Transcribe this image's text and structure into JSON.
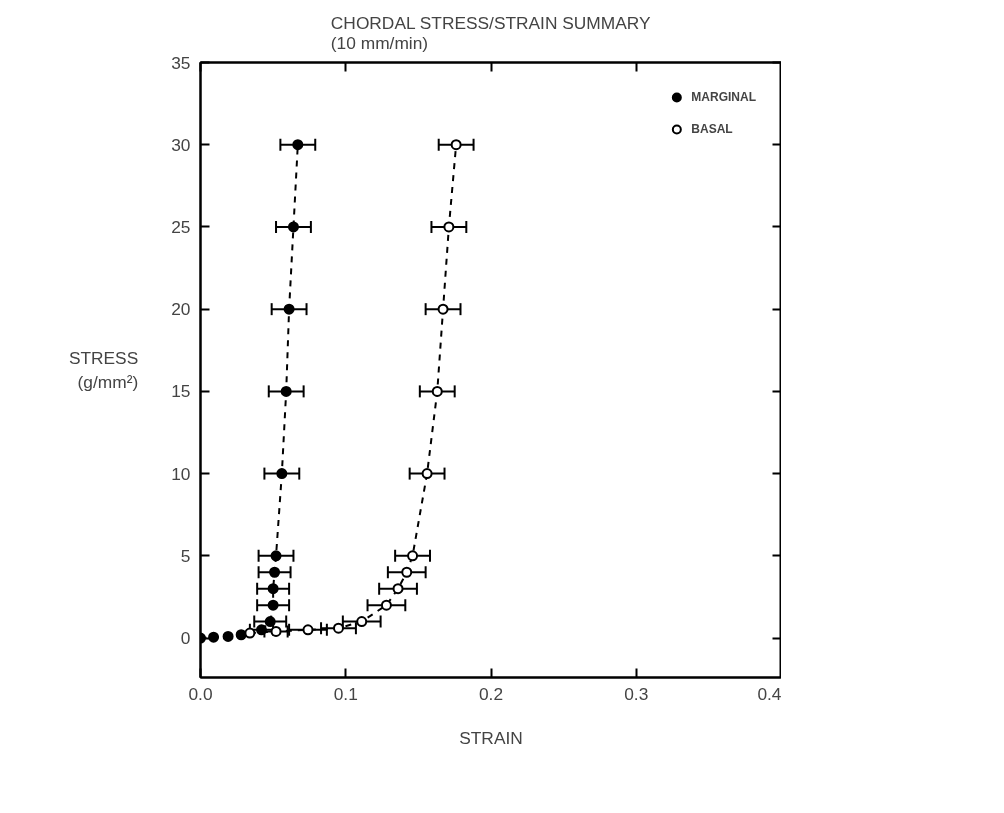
{
  "chart_data": {
    "type": "line",
    "title": "CHORDAL STRESS/STRAIN SUMMARY\n(10 mm/min)",
    "xlabel": "STRAIN",
    "ylabel": "STRESS\n(g/mm²)",
    "xlim": [
      0,
      0.4
    ],
    "ylim": [
      -2.4,
      35
    ],
    "xticks": [
      {
        "value": 0,
        "label": "0.0"
      },
      0.1,
      0.2,
      0.3,
      0.4
    ],
    "yticks": [
      0,
      5,
      10,
      15,
      20,
      25,
      30,
      35
    ],
    "grid": false,
    "legend": "top right",
    "marker": "circle",
    "line_style": "dashed",
    "series": [
      {
        "name": "MARGINAL",
        "color": "#000000",
        "x": [
          0,
          0.009,
          0.019,
          0.028,
          0.035,
          0.042,
          0.048,
          0.05,
          0.05,
          0.051,
          0.052,
          0.056,
          0.059,
          0.061,
          0.064,
          0.067
        ],
        "values": [
          0,
          0.05,
          0.1,
          0.2,
          null,
          0.5,
          1,
          2,
          3,
          4,
          5,
          10,
          15,
          20,
          25,
          30
        ],
        "xerrors": [
          null,
          null,
          null,
          null,
          null,
          0.008,
          0.011,
          0.011,
          0.011,
          0.011,
          0.012,
          0.012,
          0.012,
          0.012,
          0.012,
          0.012
        ]
      },
      {
        "name": "BASAL",
        "color": "#000000",
        "x": [
          0.034,
          0.052,
          0.074,
          0.095,
          0.111,
          0.128,
          0.136,
          0.142,
          0.146,
          0.156,
          0.163,
          0.167,
          0.171,
          0.176
        ],
        "values": [
          0.3,
          0.4,
          0.5,
          0.6,
          1,
          2,
          3,
          4,
          5,
          10,
          15,
          20,
          25,
          30
        ],
        "xerrors": [
          null,
          0.008,
          0.013,
          0.012,
          0.013,
          0.013,
          0.013,
          0.013,
          0.012,
          0.012,
          0.012,
          0.012,
          0.012,
          0.012
        ]
      }
    ]
  }
}
